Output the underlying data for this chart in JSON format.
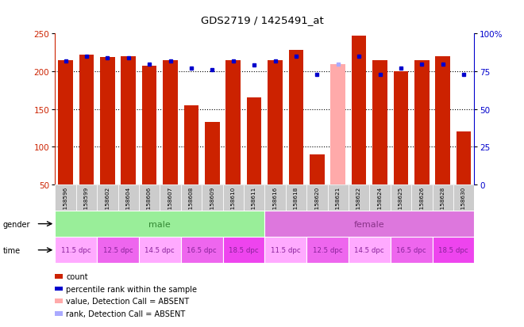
{
  "title": "GDS2719 / 1425491_at",
  "samples": [
    "GSM158596",
    "GSM158599",
    "GSM158602",
    "GSM158604",
    "GSM158606",
    "GSM158607",
    "GSM158608",
    "GSM158609",
    "GSM158610",
    "GSM158611",
    "GSM158616",
    "GSM158618",
    "GSM158620",
    "GSM158621",
    "GSM158622",
    "GSM158624",
    "GSM158625",
    "GSM158626",
    "GSM158628",
    "GSM158630"
  ],
  "bar_values": [
    215,
    222,
    219,
    220,
    207,
    215,
    155,
    133,
    215,
    165,
    215,
    228,
    90,
    210,
    247,
    215,
    200,
    215,
    220,
    120
  ],
  "bar_absent": [
    false,
    false,
    false,
    false,
    false,
    false,
    false,
    false,
    false,
    false,
    false,
    false,
    false,
    true,
    false,
    false,
    false,
    false,
    false,
    false
  ],
  "percentile_ranks": [
    82,
    85,
    84,
    84,
    80,
    82,
    77,
    76,
    82,
    79,
    82,
    85,
    73,
    80,
    85,
    73,
    77,
    80,
    80,
    73
  ],
  "percentile_absent": [
    false,
    false,
    false,
    false,
    false,
    false,
    false,
    false,
    false,
    false,
    false,
    false,
    false,
    true,
    false,
    false,
    false,
    false,
    false,
    false
  ],
  "ylim_left": [
    50,
    250
  ],
  "yticks_left": [
    50,
    100,
    150,
    200,
    250
  ],
  "ylim_right": [
    0,
    100
  ],
  "yticks_right": [
    0,
    25,
    50,
    75,
    100
  ],
  "bar_color": "#cc2200",
  "bar_absent_color": "#ffaaaa",
  "dot_color": "#0000cc",
  "dot_absent_color": "#aaaaff",
  "bg_color": "#ffffff",
  "left_axis_color": "#cc2200",
  "right_axis_color": "#0000cc",
  "sample_label_bg": "#cccccc",
  "gender_male_color": "#99ee99",
  "gender_female_color": "#dd77dd",
  "gender_male_text_color": "#338833",
  "gender_female_text_color": "#883388",
  "time_colors": [
    "#ffaaff",
    "#ee66ee",
    "#ffaaff",
    "#ee66ee",
    "#ee44ee",
    "#ffaaff",
    "#ee66ee",
    "#ffaaff",
    "#ee66ee",
    "#ee44ee"
  ],
  "time_text_color": "#882299",
  "time_labels": [
    "11.5 dpc",
    "12.5 dpc",
    "14.5 dpc",
    "16.5 dpc",
    "18.5 dpc",
    "11.5 dpc",
    "12.5 dpc",
    "14.5 dpc",
    "16.5 dpc",
    "18.5 dpc"
  ],
  "n_male": 10,
  "n_female": 10,
  "legend_items": [
    "count",
    "percentile rank within the sample",
    "value, Detection Call = ABSENT",
    "rank, Detection Call = ABSENT"
  ],
  "legend_colors": [
    "#cc2200",
    "#0000cc",
    "#ffaaaa",
    "#aaaaff"
  ]
}
